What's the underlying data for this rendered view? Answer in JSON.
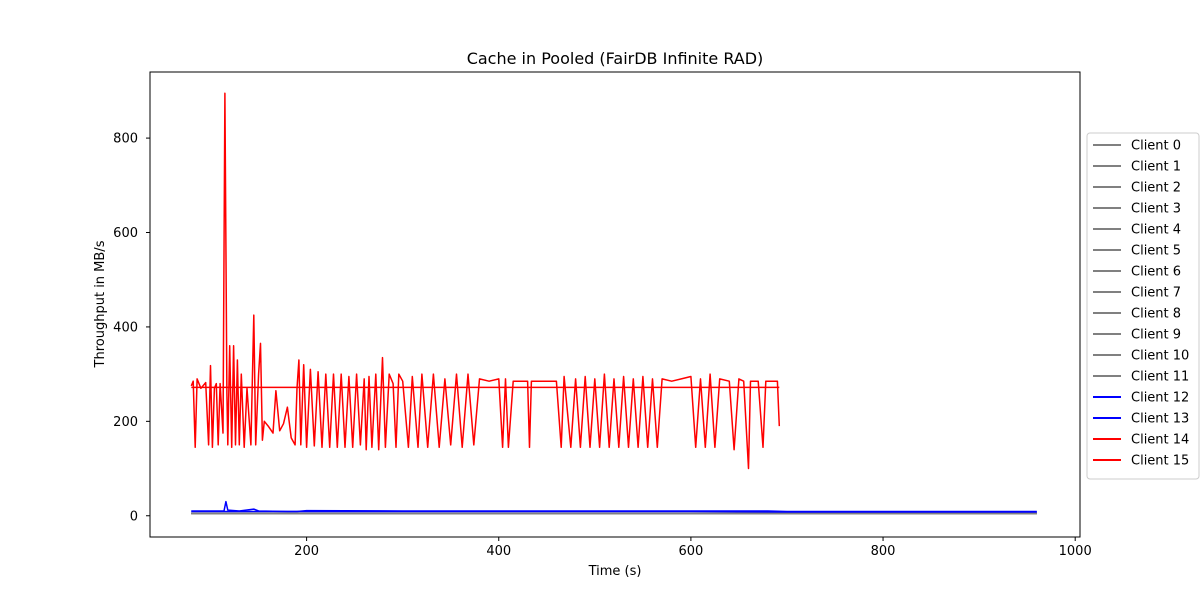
{
  "chart_data": {
    "type": "line",
    "title": "Cache in  Pooled (FairDB Infinite RAD)",
    "xlabel": "Time (s)",
    "ylabel": "Throughput in MB/s",
    "xlim": [
      37,
      1005
    ],
    "ylim": [
      -45,
      940
    ],
    "xticks": [
      200,
      400,
      600,
      800,
      1000
    ],
    "yticks": [
      0,
      200,
      400,
      600,
      800
    ],
    "grid": false,
    "legend_position": "right, outside plot",
    "series": [
      {
        "name": "Client 0",
        "color": "#808080",
        "x_range": [
          80,
          960
        ],
        "level": 5
      },
      {
        "name": "Client 1",
        "color": "#808080",
        "x_range": [
          80,
          960
        ],
        "level": 5
      },
      {
        "name": "Client 2",
        "color": "#808080",
        "x_range": [
          80,
          960
        ],
        "level": 5
      },
      {
        "name": "Client 3",
        "color": "#808080",
        "x_range": [
          80,
          960
        ],
        "level": 5
      },
      {
        "name": "Client 4",
        "color": "#808080",
        "x_range": [
          80,
          960
        ],
        "level": 5
      },
      {
        "name": "Client 5",
        "color": "#808080",
        "x_range": [
          80,
          960
        ],
        "level": 5
      },
      {
        "name": "Client 6",
        "color": "#808080",
        "x_range": [
          80,
          960
        ],
        "level": 5
      },
      {
        "name": "Client 7",
        "color": "#808080",
        "x_range": [
          80,
          960
        ],
        "level": 5
      },
      {
        "name": "Client 8",
        "color": "#808080",
        "x_range": [
          80,
          960
        ],
        "level": 5
      },
      {
        "name": "Client 9",
        "color": "#808080",
        "x_range": [
          80,
          960
        ],
        "level": 5
      },
      {
        "name": "Client 10",
        "color": "#808080",
        "x_range": [
          80,
          960
        ],
        "level": 5
      },
      {
        "name": "Client 11",
        "color": "#808080",
        "x_range": [
          80,
          960
        ],
        "level": 5
      },
      {
        "name": "Client 12",
        "color": "#0000ff",
        "points": [
          [
            80,
            10
          ],
          [
            114,
            10
          ],
          [
            116,
            30
          ],
          [
            118,
            12
          ],
          [
            130,
            10
          ],
          [
            145,
            14
          ],
          [
            150,
            10
          ],
          [
            180,
            9
          ],
          [
            190,
            9
          ],
          [
            200,
            11
          ],
          [
            300,
            10
          ],
          [
            400,
            10
          ],
          [
            500,
            10
          ],
          [
            600,
            10
          ],
          [
            680,
            10
          ],
          [
            700,
            9
          ],
          [
            800,
            9
          ],
          [
            900,
            9
          ],
          [
            960,
            9
          ]
        ]
      },
      {
        "name": "Client 13",
        "color": "#0000ff",
        "points": [
          [
            80,
            9
          ],
          [
            200,
            9
          ],
          [
            400,
            9
          ],
          [
            600,
            9
          ],
          [
            700,
            8
          ],
          [
            800,
            8
          ],
          [
            960,
            8
          ]
        ]
      },
      {
        "name": "Client 14",
        "color": "#ff0000",
        "points": [
          [
            80,
            275
          ],
          [
            82,
            285
          ],
          [
            84,
            145
          ],
          [
            86,
            290
          ],
          [
            90,
            270
          ],
          [
            95,
            282
          ],
          [
            98,
            150
          ],
          [
            100,
            318
          ],
          [
            102,
            145
          ],
          [
            104,
            270
          ],
          [
            106,
            280
          ],
          [
            108,
            150
          ],
          [
            110,
            280
          ],
          [
            113,
            175
          ],
          [
            115,
            895
          ],
          [
            117,
            260
          ],
          [
            118,
            150
          ],
          [
            120,
            360
          ],
          [
            122,
            145
          ],
          [
            124,
            360
          ],
          [
            126,
            150
          ],
          [
            128,
            330
          ],
          [
            130,
            150
          ],
          [
            132,
            300
          ],
          [
            135,
            145
          ],
          [
            138,
            270
          ],
          [
            142,
            150
          ],
          [
            145,
            425
          ],
          [
            147,
            150
          ],
          [
            150,
            300
          ],
          [
            152,
            365
          ],
          [
            154,
            160
          ],
          [
            156,
            200
          ],
          [
            160,
            190
          ],
          [
            165,
            175
          ],
          [
            168,
            265
          ],
          [
            172,
            180
          ],
          [
            176,
            195
          ],
          [
            180,
            230
          ],
          [
            184,
            165
          ],
          [
            188,
            150
          ],
          [
            190,
            270
          ],
          [
            192,
            330
          ],
          [
            194,
            150
          ],
          [
            197,
            320
          ],
          [
            200,
            145
          ],
          [
            204,
            310
          ],
          [
            208,
            148
          ],
          [
            212,
            305
          ],
          [
            216,
            145
          ],
          [
            220,
            300
          ],
          [
            224,
            145
          ],
          [
            228,
            300
          ],
          [
            232,
            145
          ],
          [
            236,
            300
          ],
          [
            240,
            145
          ],
          [
            244,
            295
          ],
          [
            248,
            145
          ],
          [
            252,
            300
          ],
          [
            256,
            150
          ],
          [
            260,
            290
          ],
          [
            262,
            140
          ],
          [
            265,
            295
          ],
          [
            268,
            145
          ],
          [
            272,
            300
          ],
          [
            275,
            140
          ],
          [
            279,
            335
          ],
          [
            282,
            145
          ],
          [
            286,
            300
          ],
          [
            290,
            280
          ],
          [
            293,
            145
          ],
          [
            296,
            300
          ],
          [
            300,
            285
          ],
          [
            306,
            145
          ],
          [
            310,
            295
          ],
          [
            316,
            145
          ],
          [
            320,
            300
          ],
          [
            326,
            145
          ],
          [
            332,
            300
          ],
          [
            338,
            145
          ],
          [
            344,
            290
          ],
          [
            350,
            150
          ],
          [
            356,
            300
          ],
          [
            362,
            145
          ],
          [
            368,
            300
          ],
          [
            374,
            150
          ],
          [
            380,
            290
          ],
          [
            390,
            285
          ],
          [
            400,
            290
          ],
          [
            404,
            145
          ],
          [
            407,
            290
          ],
          [
            410,
            145
          ],
          [
            415,
            285
          ],
          [
            430,
            285
          ],
          [
            432,
            145
          ],
          [
            434,
            285
          ],
          [
            460,
            285
          ],
          [
            465,
            145
          ],
          [
            468,
            295
          ],
          [
            475,
            145
          ],
          [
            480,
            290
          ],
          [
            485,
            145
          ],
          [
            490,
            295
          ],
          [
            495,
            145
          ],
          [
            500,
            290
          ],
          [
            505,
            145
          ],
          [
            510,
            300
          ],
          [
            515,
            145
          ],
          [
            520,
            290
          ],
          [
            525,
            145
          ],
          [
            530,
            295
          ],
          [
            535,
            145
          ],
          [
            540,
            290
          ],
          [
            545,
            145
          ],
          [
            550,
            295
          ],
          [
            555,
            145
          ],
          [
            560,
            290
          ],
          [
            565,
            145
          ],
          [
            570,
            290
          ],
          [
            580,
            285
          ],
          [
            590,
            290
          ],
          [
            600,
            295
          ],
          [
            605,
            145
          ],
          [
            610,
            290
          ],
          [
            615,
            145
          ],
          [
            620,
            300
          ],
          [
            625,
            145
          ],
          [
            630,
            290
          ],
          [
            640,
            285
          ],
          [
            645,
            140
          ],
          [
            650,
            290
          ],
          [
            655,
            285
          ],
          [
            660,
            100
          ],
          [
            662,
            285
          ],
          [
            670,
            285
          ],
          [
            675,
            145
          ],
          [
            678,
            285
          ],
          [
            685,
            285
          ],
          [
            690,
            285
          ],
          [
            692,
            190
          ]
        ]
      },
      {
        "name": "Client 15",
        "color": "#ff0000",
        "points": [
          [
            80,
            272
          ],
          [
            692,
            272
          ]
        ]
      }
    ]
  }
}
